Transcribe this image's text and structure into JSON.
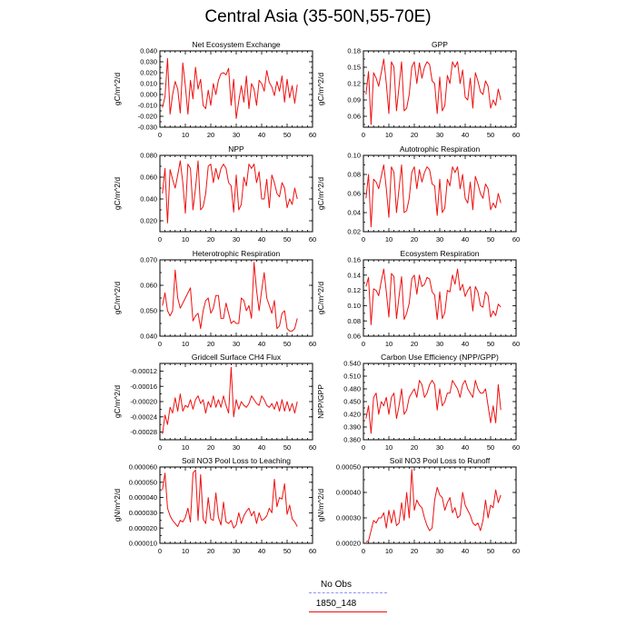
{
  "title": "Central Asia (35-50N,55-70E)",
  "colors": {
    "series": "#ee1111",
    "obs": "#8f8fff"
  },
  "legend": [
    {
      "label": "No Obs",
      "color": "#8f8fff",
      "style": "dashed"
    },
    {
      "label": "1850_148",
      "color": "#ee1111",
      "style": "solid"
    }
  ],
  "chart_data": [
    {
      "type": "line",
      "title": "Net Ecosystem Exchange",
      "ylabel": "gC/m^2/d",
      "xlim": [
        0,
        60
      ],
      "ylim": [
        -0.03,
        0.04
      ],
      "xticks": [
        0,
        10,
        20,
        30,
        40,
        50,
        60
      ],
      "yticks": [
        -0.03,
        -0.02,
        -0.01,
        0.0,
        0.01,
        0.02,
        0.03,
        0.04
      ],
      "ytick_labels": [
        "-0.030",
        "-0.020",
        "-0.010",
        "0.000",
        "0.010",
        "0.020",
        "0.030",
        "0.040"
      ],
      "series": [
        {
          "name": "1850_148",
          "x_start": 1,
          "values": [
            -0.012,
            -0.002,
            0.033,
            -0.018,
            0.0,
            0.012,
            0.005,
            -0.017,
            0.029,
            0.008,
            -0.018,
            0.013,
            -0.004,
            0.025,
            0.005,
            0.014,
            -0.01,
            -0.013,
            0.004,
            -0.01,
            0.01,
            0.0,
            0.013,
            0.019,
            0.02,
            0.018,
            0.024,
            -0.01,
            0.014,
            -0.022,
            -0.006,
            0.008,
            -0.007,
            0.017,
            -0.013,
            0.01,
            0.005,
            -0.01,
            0.013,
            0.01,
            0.003,
            0.022,
            0.011,
            0.007,
            -0.001,
            0.012,
            0.003,
            0.017,
            -0.007,
            0.014,
            -0.003,
            0.008,
            -0.008,
            0.009
          ]
        }
      ]
    },
    {
      "type": "line",
      "title": "GPP",
      "ylabel": "gC/m^2/d",
      "xlim": [
        0,
        60
      ],
      "ylim": [
        0.04,
        0.18
      ],
      "xticks": [
        0,
        10,
        20,
        30,
        40,
        50,
        60
      ],
      "yticks": [
        0.06,
        0.09,
        0.12,
        0.15,
        0.18
      ],
      "ytick_labels": [
        "0.06",
        "0.09",
        "0.12",
        "0.15",
        "0.18"
      ],
      "series": [
        {
          "name": "1850_148",
          "x_start": 1,
          "values": [
            0.1,
            0.142,
            0.045,
            0.14,
            0.13,
            0.115,
            0.14,
            0.165,
            0.12,
            0.065,
            0.16,
            0.15,
            0.07,
            0.115,
            0.16,
            0.07,
            0.075,
            0.1,
            0.15,
            0.16,
            0.12,
            0.158,
            0.13,
            0.15,
            0.16,
            0.155,
            0.125,
            0.12,
            0.065,
            0.132,
            0.07,
            0.08,
            0.135,
            0.12,
            0.16,
            0.15,
            0.16,
            0.12,
            0.145,
            0.095,
            0.09,
            0.13,
            0.075,
            0.14,
            0.125,
            0.105,
            0.1,
            0.125,
            0.115,
            0.075,
            0.09,
            0.08,
            0.11,
            0.09
          ]
        }
      ]
    },
    {
      "type": "line",
      "title": "NPP",
      "ylabel": "gC/m^2/d",
      "xlim": [
        0,
        60
      ],
      "ylim": [
        0.01,
        0.08
      ],
      "xticks": [
        0,
        10,
        20,
        30,
        40,
        50,
        60
      ],
      "yticks": [
        0.02,
        0.04,
        0.06,
        0.08
      ],
      "ytick_labels": [
        "0.020",
        "0.040",
        "0.060",
        "0.080"
      ],
      "series": [
        {
          "name": "1850_148",
          "x_start": 1,
          "values": [
            0.045,
            0.068,
            0.018,
            0.067,
            0.058,
            0.05,
            0.062,
            0.075,
            0.055,
            0.027,
            0.072,
            0.068,
            0.03,
            0.05,
            0.075,
            0.03,
            0.033,
            0.045,
            0.07,
            0.072,
            0.055,
            0.068,
            0.058,
            0.068,
            0.072,
            0.068,
            0.055,
            0.052,
            0.028,
            0.062,
            0.03,
            0.035,
            0.06,
            0.052,
            0.072,
            0.068,
            0.072,
            0.055,
            0.065,
            0.04,
            0.04,
            0.058,
            0.032,
            0.062,
            0.055,
            0.045,
            0.042,
            0.055,
            0.05,
            0.032,
            0.04,
            0.035,
            0.05,
            0.04
          ]
        }
      ]
    },
    {
      "type": "line",
      "title": "Autotrophic Respiration",
      "ylabel": "gC/m^2/d",
      "xlim": [
        0,
        60
      ],
      "ylim": [
        0.02,
        0.1
      ],
      "xticks": [
        0,
        10,
        20,
        30,
        40,
        50,
        60
      ],
      "yticks": [
        0.02,
        0.04,
        0.06,
        0.08,
        0.1
      ],
      "ytick_labels": [
        "0.02",
        "0.04",
        "0.06",
        "0.08",
        "0.10"
      ],
      "series": [
        {
          "name": "1850_148",
          "x_start": 1,
          "values": [
            0.055,
            0.08,
            0.025,
            0.075,
            0.072,
            0.065,
            0.078,
            0.09,
            0.065,
            0.035,
            0.088,
            0.082,
            0.04,
            0.065,
            0.09,
            0.04,
            0.042,
            0.055,
            0.082,
            0.088,
            0.065,
            0.085,
            0.072,
            0.082,
            0.088,
            0.085,
            0.07,
            0.068,
            0.037,
            0.075,
            0.04,
            0.045,
            0.075,
            0.068,
            0.088,
            0.082,
            0.088,
            0.065,
            0.08,
            0.055,
            0.05,
            0.072,
            0.043,
            0.078,
            0.07,
            0.06,
            0.055,
            0.07,
            0.065,
            0.043,
            0.05,
            0.045,
            0.06,
            0.05
          ]
        }
      ]
    },
    {
      "type": "line",
      "title": "Heterotrophic Respiration",
      "ylabel": "gC/m^2/d",
      "xlim": [
        0,
        60
      ],
      "ylim": [
        0.04,
        0.07
      ],
      "xticks": [
        0,
        10,
        20,
        30,
        40,
        50,
        60
      ],
      "yticks": [
        0.04,
        0.05,
        0.06,
        0.07
      ],
      "ytick_labels": [
        "0.040",
        "0.050",
        "0.060",
        "0.070"
      ],
      "series": [
        {
          "name": "1850_148",
          "x_start": 1,
          "values": [
            0.052,
            0.057,
            0.05,
            0.048,
            0.05,
            0.066,
            0.055,
            0.051,
            0.053,
            0.055,
            0.057,
            0.059,
            0.046,
            0.048,
            0.049,
            0.043,
            0.05,
            0.054,
            0.055,
            0.049,
            0.051,
            0.056,
            0.056,
            0.047,
            0.047,
            0.053,
            0.049,
            0.045,
            0.046,
            0.045,
            0.045,
            0.055,
            0.054,
            0.05,
            0.052,
            0.047,
            0.069,
            0.058,
            0.05,
            0.058,
            0.065,
            0.055,
            0.052,
            0.049,
            0.054,
            0.043,
            0.044,
            0.049,
            0.05,
            0.043,
            0.042,
            0.042,
            0.043,
            0.047
          ]
        }
      ]
    },
    {
      "type": "line",
      "title": "Ecosystem Respiration",
      "ylabel": "gC/m^2/d",
      "xlim": [
        0,
        60
      ],
      "ylim": [
        0.06,
        0.16
      ],
      "xticks": [
        0,
        10,
        20,
        30,
        40,
        50,
        60
      ],
      "yticks": [
        0.06,
        0.08,
        0.1,
        0.12,
        0.14,
        0.16
      ],
      "ytick_labels": [
        "0.06",
        "0.08",
        "0.10",
        "0.12",
        "0.14",
        "0.16"
      ],
      "series": [
        {
          "name": "1850_148",
          "x_start": 1,
          "values": [
            0.125,
            0.137,
            0.075,
            0.122,
            0.12,
            0.113,
            0.132,
            0.148,
            0.118,
            0.085,
            0.142,
            0.138,
            0.083,
            0.112,
            0.138,
            0.082,
            0.09,
            0.103,
            0.135,
            0.14,
            0.115,
            0.14,
            0.125,
            0.128,
            0.137,
            0.135,
            0.118,
            0.114,
            0.082,
            0.118,
            0.083,
            0.091,
            0.12,
            0.118,
            0.14,
            0.128,
            0.148,
            0.12,
            0.128,
            0.112,
            0.12,
            0.125,
            0.093,
            0.125,
            0.118,
            0.1,
            0.098,
            0.118,
            0.113,
            0.085,
            0.093,
            0.087,
            0.102,
            0.098
          ]
        }
      ]
    },
    {
      "type": "line",
      "title": "Gridcell Surface CH4 Flux",
      "ylabel": "gC/m^2/d",
      "xlim": [
        0,
        60
      ],
      "ylim": [
        -0.0003,
        -0.0001
      ],
      "xticks": [
        0,
        10,
        20,
        30,
        40,
        50,
        60
      ],
      "yticks": [
        -0.00028,
        -0.00024,
        -0.0002,
        -0.00016,
        -0.00012
      ],
      "ytick_labels": [
        "-0.00028",
        "-0.00024",
        "-0.00020",
        "-0.00016",
        "-0.00012"
      ],
      "series": [
        {
          "name": "1850_148",
          "x_start": 1,
          "values": [
            -0.000285,
            -0.000235,
            -0.00026,
            -0.000215,
            -0.00023,
            -0.00019,
            -0.000225,
            -0.00018,
            -0.000225,
            -0.00021,
            -0.000215,
            -0.000195,
            -0.00022,
            -0.000195,
            -0.000185,
            -0.000205,
            -0.000195,
            -0.00023,
            -0.0002,
            -0.000215,
            -0.000185,
            -0.000215,
            -0.000195,
            -0.000215,
            -0.000185,
            -0.00021,
            -0.00023,
            -0.00011,
            -0.00024,
            -0.000195,
            -0.00022,
            -0.0002,
            -0.00021,
            -0.000215,
            -0.000205,
            -0.000185,
            -0.000195,
            -0.000205,
            -0.00021,
            -0.000185,
            -0.000195,
            -0.00021,
            -0.000215,
            -0.000205,
            -0.00022,
            -0.0002,
            -0.000225,
            -0.000195,
            -0.000225,
            -0.0002,
            -0.000225,
            -0.000205,
            -0.00023,
            -0.0002
          ]
        }
      ]
    },
    {
      "type": "line",
      "title": "Carbon Use Efficiency (NPP/GPP)",
      "ylabel": "NPP/GPP",
      "xlim": [
        0,
        60
      ],
      "ylim": [
        0.36,
        0.54
      ],
      "xticks": [
        0,
        10,
        20,
        30,
        40,
        50,
        60
      ],
      "yticks": [
        0.36,
        0.39,
        0.42,
        0.45,
        0.48,
        0.51,
        0.54
      ],
      "ytick_labels": [
        "0.360",
        "0.390",
        "0.420",
        "0.450",
        "0.480",
        "0.510",
        "0.540"
      ],
      "series": [
        {
          "name": "1850_148",
          "x_start": 1,
          "values": [
            0.41,
            0.44,
            0.375,
            0.46,
            0.47,
            0.42,
            0.45,
            0.44,
            0.46,
            0.42,
            0.46,
            0.47,
            0.41,
            0.44,
            0.48,
            0.42,
            0.43,
            0.46,
            0.47,
            0.48,
            0.46,
            0.5,
            0.49,
            0.46,
            0.47,
            0.49,
            0.5,
            0.49,
            0.43,
            0.48,
            0.44,
            0.45,
            0.47,
            0.47,
            0.5,
            0.49,
            0.48,
            0.46,
            0.49,
            0.5,
            0.48,
            0.47,
            0.46,
            0.5,
            0.48,
            0.47,
            0.47,
            0.48,
            0.44,
            0.4,
            0.44,
            0.4,
            0.49,
            0.43
          ]
        }
      ]
    },
    {
      "type": "line",
      "title": "Soil NO3 Pool Loss to Leaching",
      "ylabel": "gN/m^2/d",
      "xlim": [
        0,
        60
      ],
      "ylim": [
        1e-05,
        6e-05
      ],
      "xticks": [
        0,
        10,
        20,
        30,
        40,
        50,
        60
      ],
      "yticks": [
        1e-05,
        2e-05,
        3e-05,
        4e-05,
        5e-05,
        6e-05
      ],
      "ytick_labels": [
        "0.000010",
        "0.000020",
        "0.000030",
        "0.000040",
        "0.000050",
        "0.000060"
      ],
      "series": [
        {
          "name": "1850_148",
          "x_start": 1,
          "values": [
            4.5e-05,
            5.6e-05,
            3.3e-05,
            2.8e-05,
            2.5e-05,
            2.3e-05,
            2.1e-05,
            2.5e-05,
            2.4e-05,
            2.7e-05,
            3.3e-05,
            2.4e-05,
            5.6e-05,
            5.8e-05,
            2.5e-05,
            5.5e-05,
            2.6e-05,
            2.3e-05,
            4e-05,
            2.6e-05,
            2.5e-05,
            4.3e-05,
            2.7e-05,
            2.2e-05,
            3.7e-05,
            2.4e-05,
            2.3e-05,
            2.5e-05,
            2e-05,
            2.2e-05,
            3e-05,
            2.3e-05,
            2.8e-05,
            3.1e-05,
            3.3e-05,
            2.8e-05,
            3.1e-05,
            2.3e-05,
            3e-05,
            2.5e-05,
            2.6e-05,
            2.8e-05,
            3.3e-05,
            3e-05,
            5.2e-05,
            3.4e-05,
            4e-05,
            3.9e-05,
            4.9e-05,
            2.9e-05,
            3.5e-05,
            2.6e-05,
            2.4e-05,
            2.1e-05
          ]
        }
      ]
    },
    {
      "type": "line",
      "title": "Soil NO3 Pool Loss to Runoff",
      "ylabel": "gN/m^2/d",
      "xlim": [
        0,
        60
      ],
      "ylim": [
        0.0002,
        0.0005
      ],
      "xticks": [
        0,
        10,
        20,
        30,
        40,
        50,
        60
      ],
      "yticks": [
        0.0002,
        0.0003,
        0.0004,
        0.0005
      ],
      "ytick_labels": [
        "0.00020",
        "0.00030",
        "0.00040",
        "0.00050"
      ],
      "series": [
        {
          "name": "1850_148",
          "x_start": 1,
          "values": [
            0.000205,
            0.00021,
            0.00025,
            0.00029,
            0.00028,
            0.0003,
            0.0003,
            0.00032,
            0.00026,
            0.00033,
            0.00028,
            0.00033,
            0.00027,
            0.00028,
            0.00036,
            0.00029,
            0.0004,
            0.0003,
            0.00049,
            0.00033,
            0.00037,
            0.00035,
            0.00034,
            0.0003,
            0.00027,
            0.00025,
            0.00026,
            0.00037,
            0.00042,
            0.00039,
            0.00038,
            0.00033,
            0.00036,
            0.00038,
            0.00032,
            0.00034,
            0.0003,
            0.00031,
            0.0004,
            0.00035,
            0.00033,
            0.00031,
            0.00028,
            0.00027,
            0.00028,
            0.00025,
            0.00029,
            0.00037,
            0.0003,
            0.00035,
            0.00034,
            0.00041,
            0.00036,
            0.00039
          ]
        }
      ]
    }
  ]
}
